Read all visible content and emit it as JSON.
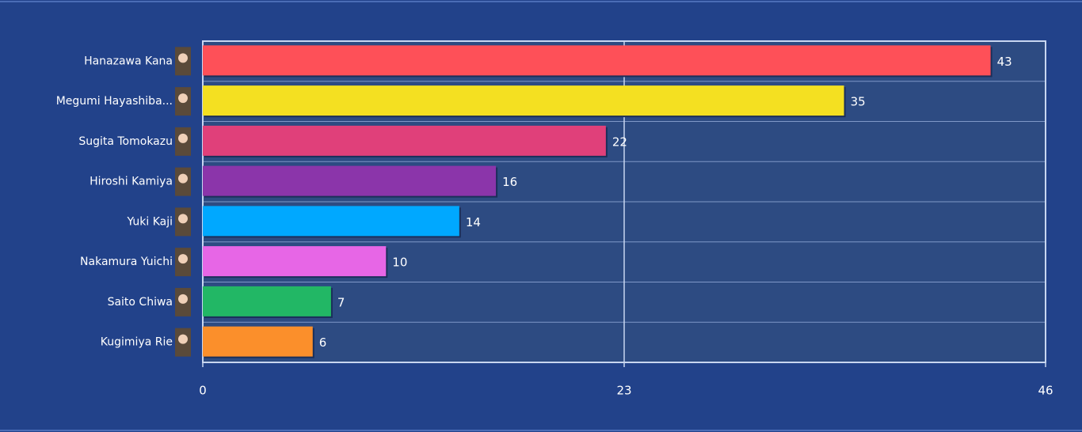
{
  "chart_data": {
    "type": "bar",
    "orientation": "horizontal",
    "categories": [
      "Hanazawa Kana",
      "Megumi Hayashiba...",
      "Sugita Tomokazu",
      "Hiroshi Kamiya",
      "Yuki Kaji",
      "Nakamura Yuichi",
      "Saito Chiwa",
      "Kugimiya Rie"
    ],
    "values": [
      43,
      35,
      22,
      16,
      14,
      10,
      7,
      6
    ],
    "colors": [
      "#fe5058",
      "#f4e021",
      "#e0407a",
      "#8b35aa",
      "#00a8ff",
      "#e766e6",
      "#22b765",
      "#fb8f2b"
    ],
    "xlim": [
      0,
      46
    ],
    "xticks": [
      0,
      23,
      46
    ],
    "grid": true
  }
}
